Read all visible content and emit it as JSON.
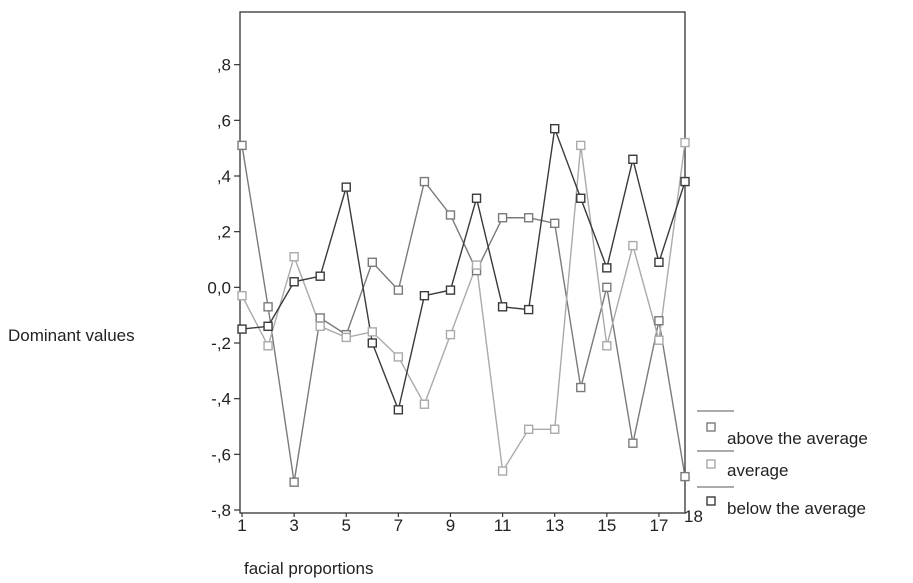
{
  "chart_data": {
    "type": "line",
    "title": "",
    "xlabel": "facial proportions",
    "ylabel": "Dominant values",
    "x": [
      1,
      2,
      3,
      4,
      5,
      6,
      7,
      8,
      9,
      10,
      11,
      12,
      13,
      14,
      15,
      16,
      17,
      18
    ],
    "xlim": [
      1,
      18
    ],
    "ylim": [
      -0.8,
      1.0
    ],
    "x_tick_labels": [
      {
        "value": 1,
        "label": "1"
      },
      {
        "value": 3,
        "label": "3"
      },
      {
        "value": 5,
        "label": "5"
      },
      {
        "value": 7,
        "label": "7"
      },
      {
        "value": 9,
        "label": "9"
      },
      {
        "value": 11,
        "label": "11"
      },
      {
        "value": 13,
        "label": "13"
      },
      {
        "value": 15,
        "label": "15"
      },
      {
        "value": 17,
        "label": "17"
      },
      {
        "value": 18,
        "label": "18",
        "small": true
      }
    ],
    "y_tick_labels": [
      {
        "value": -0.8,
        "label": "-,8"
      },
      {
        "value": -0.6,
        "label": "-,6"
      },
      {
        "value": -0.4,
        "label": "-,4"
      },
      {
        "value": -0.2,
        "label": "-,2"
      },
      {
        "value": 0.0,
        "label": "0,0"
      },
      {
        "value": 0.2,
        "label": ",2"
      },
      {
        "value": 0.4,
        "label": ",4"
      },
      {
        "value": 0.6,
        "label": ",6"
      },
      {
        "value": 0.8,
        "label": ",8"
      }
    ],
    "grid": false,
    "legend_position": "bottom-right",
    "series": [
      {
        "name": "above the average",
        "color": "#7a7a7a",
        "values": [
          0.51,
          -0.07,
          -0.7,
          -0.11,
          -0.17,
          0.09,
          -0.01,
          0.38,
          0.26,
          0.06,
          0.25,
          0.25,
          0.23,
          -0.36,
          0.0,
          -0.56,
          -0.12,
          -0.68
        ]
      },
      {
        "name": "average",
        "color": "#aaaaaa",
        "values": [
          -0.03,
          -0.21,
          0.11,
          -0.14,
          -0.18,
          -0.16,
          -0.25,
          -0.42,
          -0.17,
          0.08,
          -0.66,
          -0.51,
          -0.51,
          0.51,
          -0.21,
          0.15,
          -0.19,
          0.52
        ]
      },
      {
        "name": "below the  average",
        "color": "#3a3a3a",
        "values": [
          -0.15,
          -0.14,
          0.02,
          0.04,
          0.36,
          -0.2,
          -0.44,
          -0.03,
          -0.01,
          0.32,
          -0.07,
          -0.08,
          0.57,
          0.32,
          0.07,
          0.46,
          0.09,
          0.38
        ]
      }
    ]
  }
}
